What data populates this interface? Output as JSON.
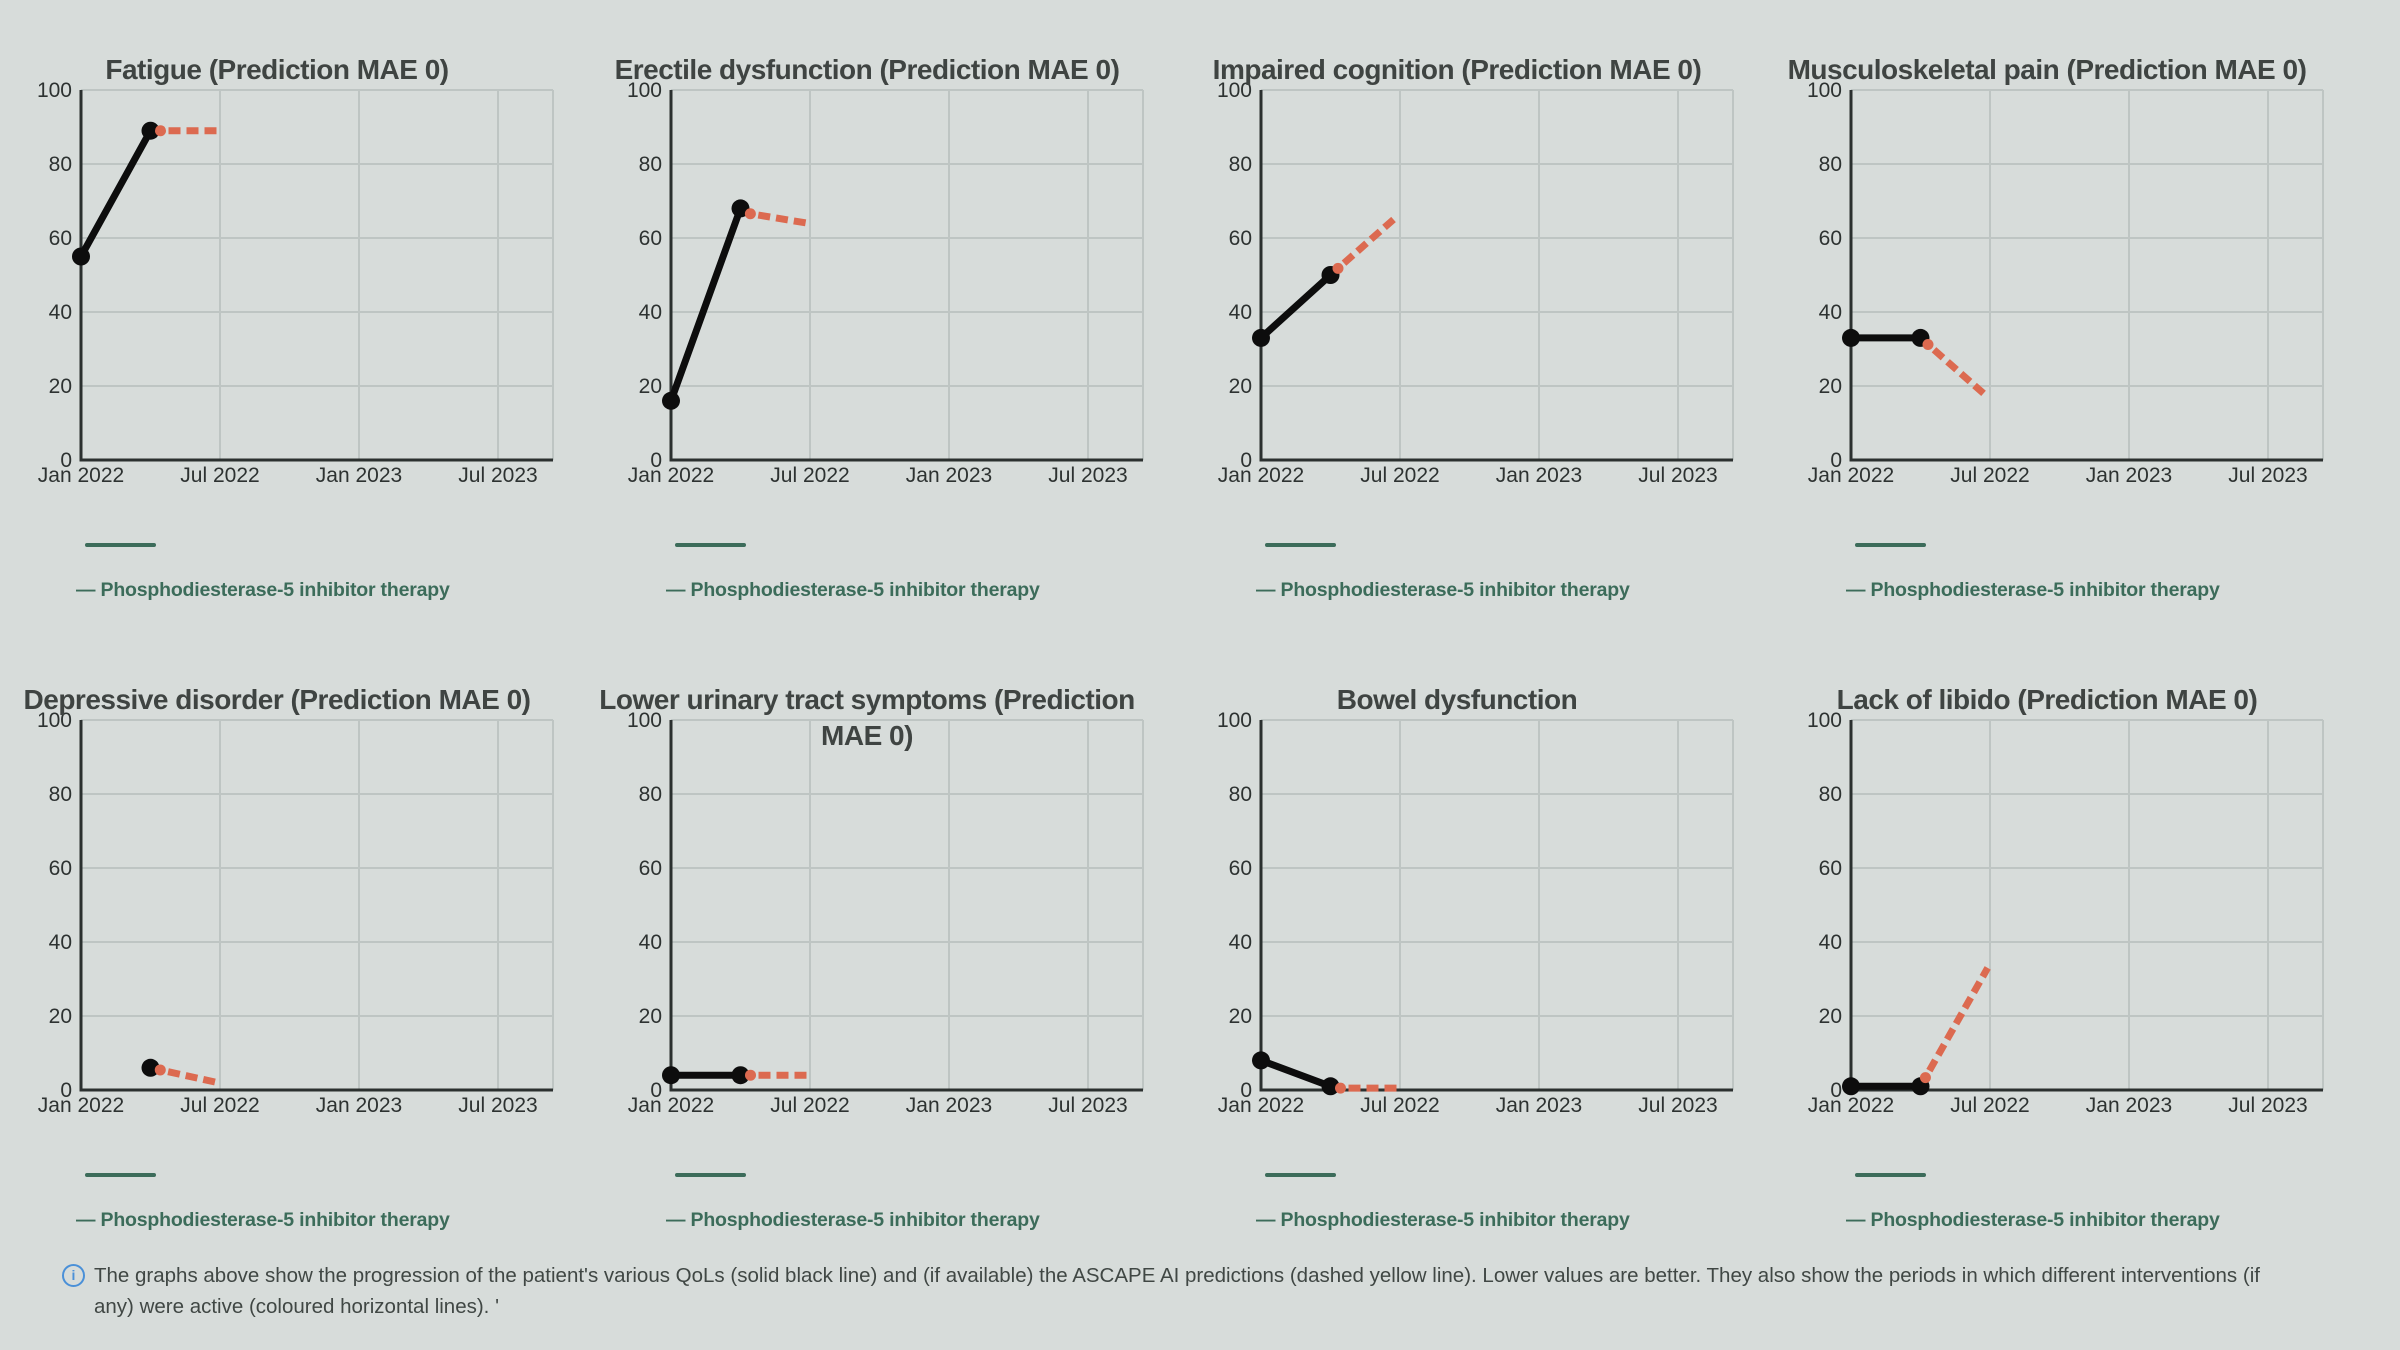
{
  "app": {
    "background": "#d7dcda",
    "description": "Patient quality-of-life progression charts with ASCAPE AI predictions"
  },
  "styles": {
    "actual_line_color": "#0d0d0d",
    "prediction_line_color": "#dc6a50",
    "intervention_color": "#3c6c5a",
    "grid_color": "#bec5c3",
    "axis_color": "#2b302f",
    "title_color": "#3f4442",
    "tick_label_color": "#2d3231",
    "note_text_color": "#404744",
    "info_icon_color": "#4a90d8"
  },
  "legend": {
    "label": "— Phosphodiesterase-5 inhibitor therapy",
    "intervention_name": "Phosphodiesterase-5 inhibitor therapy",
    "color": "#3c6c5a"
  },
  "note": {
    "icon": "info",
    "text": "The graphs above show the progression of the patient's various QoLs (solid black line) and (if available) the ASCAPE AI predictions (dashed yellow line). Lower values are better. They also show the periods in which different interventions (if any) were active (coloured horizontal lines). '"
  },
  "axes": {
    "x_ticks": [
      "Jan 2022",
      "Jul 2022",
      "Jan 2023",
      "Jul 2023"
    ],
    "x_tick_months": [
      0,
      6,
      12,
      18
    ],
    "x_range_months": [
      0,
      20.4
    ],
    "y_ticks": [
      0,
      20,
      40,
      60,
      80,
      100
    ],
    "y_range": [
      0,
      100
    ],
    "grid": true
  },
  "chart_data": [
    {
      "type": "line",
      "title": "Fatigue (Prediction MAE 0)",
      "series": [
        {
          "name": "QoL (solid black line)",
          "style": "solid",
          "points": [
            [
              0,
              55
            ],
            [
              3,
              89
            ]
          ]
        },
        {
          "name": "ASCAPE AI prediction (dashed line)",
          "style": "dashed",
          "points": [
            [
              3,
              89
            ],
            [
              5.9,
              89
            ]
          ]
        }
      ],
      "intervention_months": [
        0.2,
        3.2
      ]
    },
    {
      "type": "line",
      "title": "Erectile dysfunction (Prediction MAE 0)",
      "series": [
        {
          "name": "QoL (solid black line)",
          "style": "solid",
          "points": [
            [
              0,
              16
            ],
            [
              3,
              68
            ]
          ]
        },
        {
          "name": "ASCAPE AI prediction (dashed line)",
          "style": "dashed",
          "points": [
            [
              3,
              67
            ],
            [
              5.9,
              64
            ]
          ]
        }
      ],
      "intervention_months": [
        0.2,
        3.2
      ]
    },
    {
      "type": "line",
      "title": "Impaired cognition (Prediction MAE 0)",
      "series": [
        {
          "name": "QoL (solid black line)",
          "style": "solid",
          "points": [
            [
              0,
              33
            ],
            [
              3,
              50
            ]
          ]
        },
        {
          "name": "ASCAPE AI prediction (dashed line)",
          "style": "dashed",
          "points": [
            [
              3,
              50
            ],
            [
              5.9,
              66
            ]
          ]
        }
      ],
      "intervention_months": [
        0.2,
        3.2
      ]
    },
    {
      "type": "line",
      "title": "Musculoskeletal pain (Prediction MAE 0)",
      "series": [
        {
          "name": "QoL (solid black line)",
          "style": "solid",
          "points": [
            [
              0,
              33
            ],
            [
              3,
              33
            ]
          ]
        },
        {
          "name": "ASCAPE AI prediction (dashed line)",
          "style": "dashed",
          "points": [
            [
              3,
              33
            ],
            [
              5.9,
              17
            ]
          ]
        }
      ],
      "intervention_months": [
        0.2,
        3.2
      ]
    },
    {
      "type": "line",
      "title": "Depressive disorder (Prediction MAE 0)",
      "series": [
        {
          "name": "QoL (solid black line)",
          "style": "solid",
          "points": [
            [
              3,
              6
            ]
          ]
        },
        {
          "name": "ASCAPE AI prediction (dashed line)",
          "style": "dashed",
          "points": [
            [
              3,
              6
            ],
            [
              5.9,
              2
            ]
          ]
        }
      ],
      "intervention_months": [
        0.2,
        3.2
      ]
    },
    {
      "type": "line",
      "title": "Lower urinary tract symptoms (Prediction MAE 0)",
      "series": [
        {
          "name": "QoL (solid black line)",
          "style": "solid",
          "points": [
            [
              0,
              4
            ],
            [
              3,
              4
            ]
          ]
        },
        {
          "name": "ASCAPE AI prediction (dashed line)",
          "style": "dashed",
          "points": [
            [
              3,
              4
            ],
            [
              5.9,
              4
            ]
          ]
        }
      ],
      "intervention_months": [
        0.2,
        3.2
      ]
    },
    {
      "type": "line",
      "title": "Bowel dysfunction",
      "series": [
        {
          "name": "QoL (solid black line)",
          "style": "solid",
          "points": [
            [
              0,
              8
            ],
            [
              3,
              1
            ]
          ]
        },
        {
          "name": "ASCAPE AI prediction (dashed line)",
          "style": "dashed",
          "points": [
            [
              3,
              0.5
            ],
            [
              5.9,
              0.5
            ]
          ]
        }
      ],
      "intervention_months": [
        0.2,
        3.2
      ]
    },
    {
      "type": "line",
      "title": "Lack of libido (Prediction MAE 0)",
      "series": [
        {
          "name": "QoL (solid black line)",
          "style": "solid",
          "points": [
            [
              0,
              1
            ],
            [
              3,
              1
            ]
          ]
        },
        {
          "name": "ASCAPE AI prediction (dashed line)",
          "style": "dashed",
          "points": [
            [
              3,
              1
            ],
            [
              5.9,
              33
            ]
          ]
        }
      ],
      "intervention_months": [
        0.2,
        3.2
      ]
    }
  ]
}
